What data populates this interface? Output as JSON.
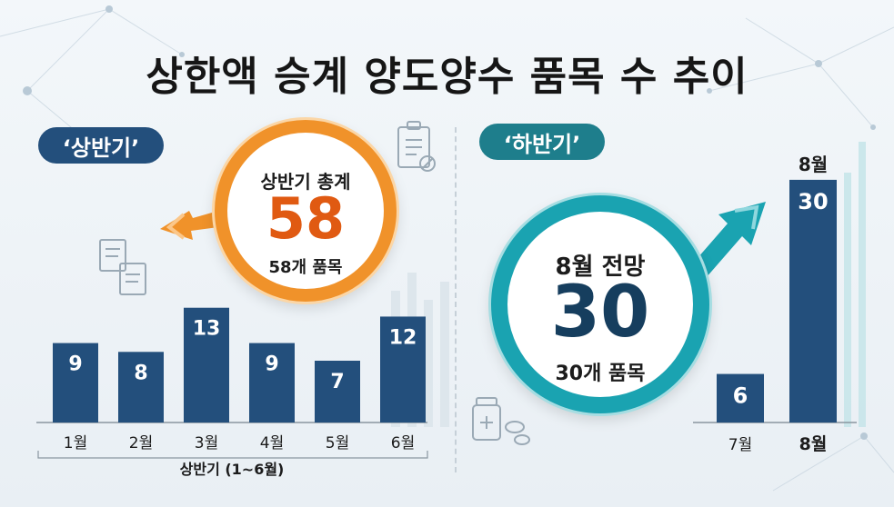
{
  "title": "상한액 승계 양도양수 품목 수 추이",
  "first_half": {
    "tag": "‘상반기’",
    "callout_label": "상반기 총계",
    "callout_value": "58",
    "callout_sub": "58개 품목",
    "axis_caption": "상반기 (1~6월)"
  },
  "second_half": {
    "tag": "‘하반기’",
    "callout_label": "8월 전망",
    "callout_value": "30",
    "callout_sub": "30개 품목"
  },
  "colors": {
    "bar": "#234f7c",
    "orange_accent": "#f0922a",
    "orange_number": "#e05a12",
    "teal_accent": "#1aa3b1"
  },
  "chart_data": [
    {
      "type": "bar",
      "categories": [
        "1월",
        "2월",
        "3월",
        "4월",
        "5월",
        "6월"
      ],
      "values": [
        9,
        8,
        13,
        9,
        7,
        12
      ],
      "xlabel": "상반기 (1~6월)",
      "ylim": [
        0,
        14
      ],
      "grid": false,
      "legend": "none"
    },
    {
      "type": "bar",
      "categories": [
        "7월",
        "8월"
      ],
      "values": [
        6,
        30
      ],
      "xlabel": "",
      "top_label": "8월",
      "ylim": [
        0,
        31
      ],
      "grid": false,
      "legend": "none"
    }
  ]
}
